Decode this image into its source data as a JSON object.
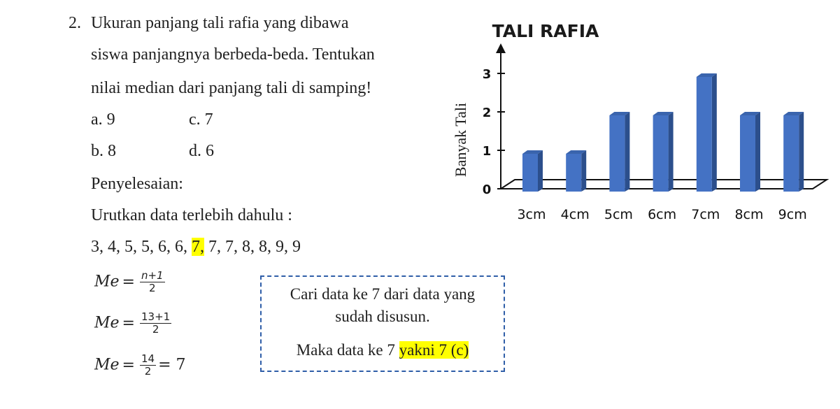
{
  "question": {
    "number": "2.",
    "lines": [
      "Ukuran   panjang   tali   rafia   yang   dibawa",
      "siswa panjangnya berbeda-beda. Tentukan",
      "nilai median dari panjang tali di samping!"
    ],
    "options": {
      "a": "a.  9",
      "b": "b.  8",
      "c": "c. 7",
      "d": "d. 6"
    }
  },
  "solution": {
    "heading": "Penyelesaian:",
    "step1": "Urutkan data terlebih dahulu :",
    "sorted_before": "3, 4, 5, 5, 6, 6, ",
    "sorted_highlight": "7,",
    "sorted_after": " 7, 7, 8, 8, 9, 9",
    "me_label": "Me",
    "eq1": {
      "num": "n+1",
      "den": "2"
    },
    "eq2": {
      "num": "13+1",
      "den": "2"
    },
    "eq3": {
      "num": "14",
      "den": "2",
      "result": "= 7"
    }
  },
  "note_box": {
    "line1": "Cari data ke 7 dari data yang",
    "line2": "sudah disusun.",
    "line3_before": "Maka data ke 7 ",
    "line3_highlight": "yakni 7 (c)"
  },
  "chart_data": {
    "type": "bar",
    "title": "TALI RAFIA",
    "ylabel": "Banyak Tali",
    "xlabel": "",
    "categories": [
      "3cm",
      "4cm",
      "5cm",
      "6cm",
      "7cm",
      "8cm",
      "9cm"
    ],
    "values": [
      1,
      1,
      2,
      2,
      3,
      2,
      2
    ],
    "yticks": [
      "0",
      "1",
      "2",
      "3"
    ],
    "ylim": [
      0,
      3
    ],
    "bar_color": "#4472c4",
    "bar_side_color": "#2c4f8c",
    "bar_top_color": "#3a64ad"
  }
}
